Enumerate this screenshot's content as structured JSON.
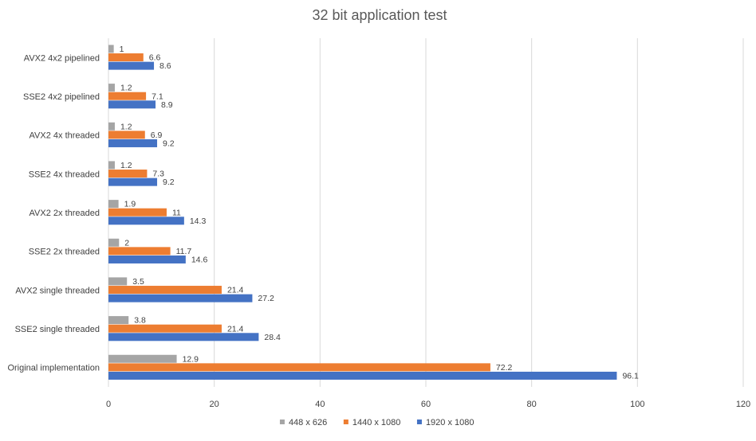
{
  "chart_data": {
    "type": "bar",
    "orientation": "horizontal",
    "title": "32 bit application test",
    "xlabel": "",
    "ylabel": "",
    "xlim": [
      0,
      120
    ],
    "x_ticks": [
      0,
      20,
      40,
      60,
      80,
      100,
      120
    ],
    "grid": true,
    "legend_position": "bottom",
    "categories": [
      "AVX2 4x2 pipelined",
      "SSE2 4x2 pipelined",
      "AVX2 4x threaded",
      "SSE2 4x threaded",
      "AVX2 2x threaded",
      "SSE2 2x threaded",
      "AVX2 single threaded",
      "SSE2 single threaded",
      "Original implementation"
    ],
    "series": [
      {
        "name": "448 x 626",
        "color": "#a5a5a5",
        "values": [
          1,
          1.2,
          1.2,
          1.2,
          1.9,
          2,
          3.5,
          3.8,
          12.9
        ]
      },
      {
        "name": "1440 x 1080",
        "color": "#ed7d31",
        "values": [
          6.6,
          7.1,
          6.9,
          7.3,
          11,
          11.7,
          21.4,
          21.4,
          72.2
        ]
      },
      {
        "name": "1920 x 1080",
        "color": "#4472c4",
        "values": [
          8.6,
          8.9,
          9.2,
          9.2,
          14.3,
          14.6,
          27.2,
          28.4,
          96.1
        ]
      }
    ]
  }
}
